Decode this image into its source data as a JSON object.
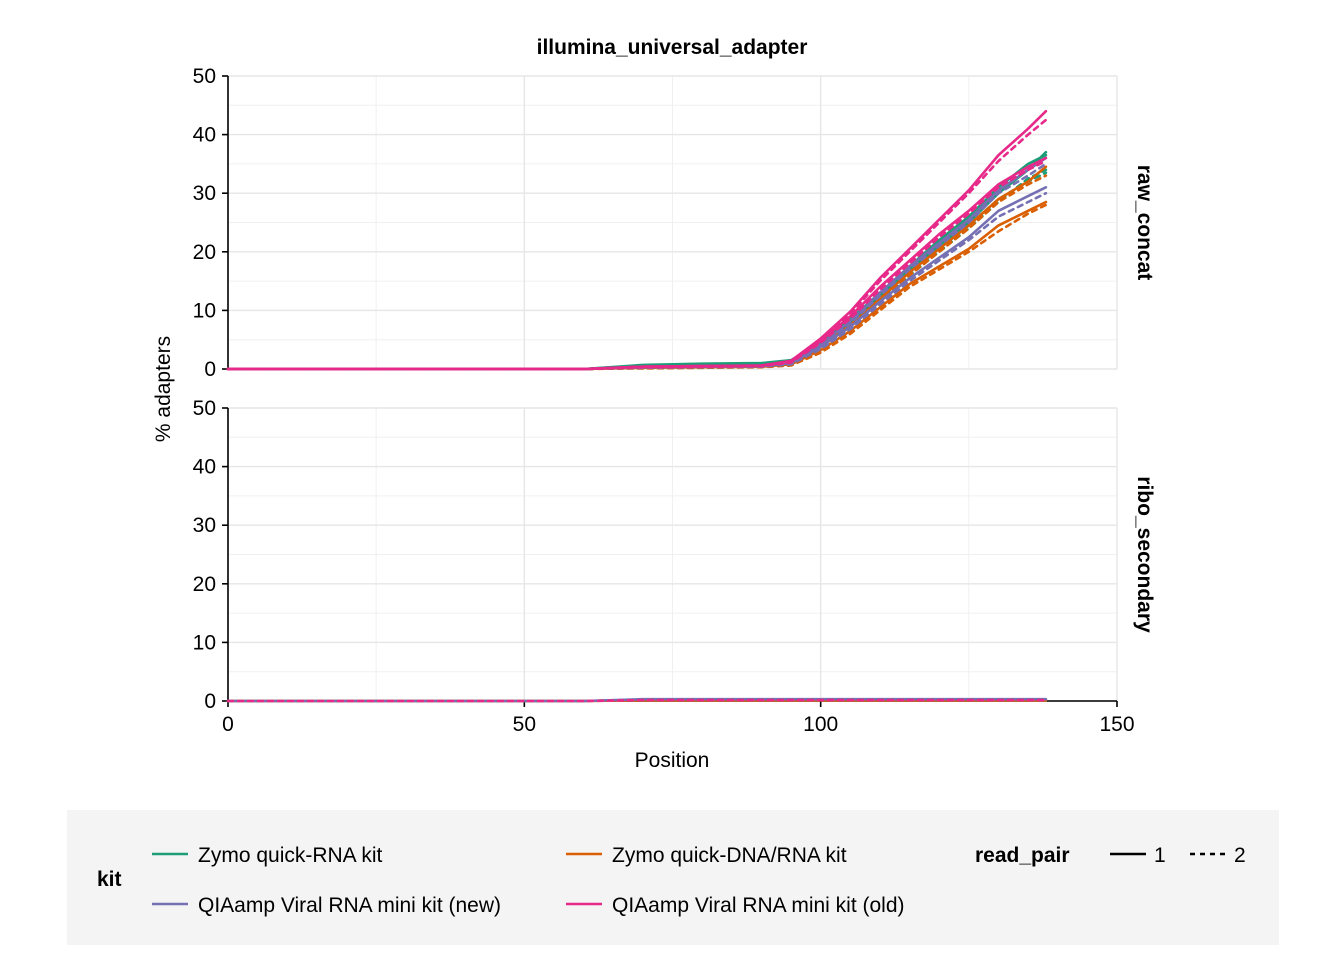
{
  "chart_data": {
    "type": "line",
    "title": "illumina_universal_adapter",
    "xlabel": "Position",
    "ylabel": "% adapters",
    "xlim": [
      0,
      150
    ],
    "ylim": [
      0,
      50
    ],
    "xticks": [
      0,
      50,
      100,
      150
    ],
    "yticks": [
      0,
      10,
      20,
      30,
      40,
      50
    ],
    "grid": true,
    "legend_position": "bottom",
    "facets": [
      "raw_concat",
      "ribo_secondary"
    ],
    "legend": {
      "kit_title": "kit",
      "read_pair_title": "read_pair",
      "kits": [
        {
          "label": "Zymo quick-RNA kit",
          "color": "#1b9e77"
        },
        {
          "label": "Zymo quick-DNA/RNA kit",
          "color": "#d95f02"
        },
        {
          "label": "QIAamp Viral RNA mini kit (new)",
          "color": "#7570b3"
        },
        {
          "label": "QIAamp Viral RNA mini kit (old)",
          "color": "#e7298a"
        }
      ],
      "read_pairs": [
        {
          "label": "1",
          "dash": "solid"
        },
        {
          "label": "2",
          "dash": "dashed"
        }
      ]
    },
    "x": [
      0,
      60,
      70,
      80,
      90,
      95,
      100,
      105,
      110,
      115,
      120,
      125,
      130,
      135,
      138
    ],
    "series": [
      {
        "facet": "raw_concat",
        "kit": "Zymo quick-RNA kit",
        "read_pair": "1",
        "values": [
          0,
          0,
          0.7,
          0.9,
          1.0,
          1.5,
          4.5,
          8.5,
          13,
          17.5,
          22,
          26,
          31,
          35,
          36.5
        ]
      },
      {
        "facet": "raw_concat",
        "kit": "Zymo quick-RNA kit",
        "read_pair": "2",
        "values": [
          0,
          0,
          0.4,
          0.5,
          0.6,
          1.2,
          4.0,
          7.8,
          12,
          16.5,
          20.5,
          24.5,
          29,
          32,
          33.5
        ]
      },
      {
        "facet": "raw_concat",
        "kit": "Zymo quick-RNA kit",
        "read_pair": "1",
        "values": [
          0,
          0,
          0.6,
          0.8,
          0.9,
          1.3,
          4.2,
          8.0,
          12.5,
          17,
          21,
          25,
          30,
          34,
          37
        ]
      },
      {
        "facet": "raw_concat",
        "kit": "Zymo quick-RNA kit",
        "read_pair": "2",
        "values": [
          0,
          0,
          0.3,
          0.4,
          0.5,
          1.0,
          3.8,
          7.5,
          11.5,
          16,
          20,
          24,
          28.5,
          32.5,
          34
        ]
      },
      {
        "facet": "raw_concat",
        "kit": "Zymo quick-DNA/RNA kit",
        "read_pair": "1",
        "values": [
          0,
          0,
          0.2,
          0.3,
          0.4,
          0.8,
          3.2,
          6.5,
          10.5,
          14.5,
          17.5,
          20.5,
          24.5,
          27,
          28.5
        ]
      },
      {
        "facet": "raw_concat",
        "kit": "Zymo quick-DNA/RNA kit",
        "read_pair": "2",
        "values": [
          0,
          0,
          0.1,
          0.2,
          0.3,
          0.6,
          2.8,
          6.0,
          10,
          14,
          17,
          20,
          23.5,
          26.5,
          28
        ]
      },
      {
        "facet": "raw_concat",
        "kit": "Zymo quick-DNA/RNA kit",
        "read_pair": "1",
        "values": [
          0,
          0,
          0.3,
          0.4,
          0.5,
          1.0,
          3.8,
          7.5,
          12,
          16.5,
          20.5,
          24.5,
          29,
          32,
          34.5
        ]
      },
      {
        "facet": "raw_concat",
        "kit": "Zymo quick-DNA/RNA kit",
        "read_pair": "2",
        "values": [
          0,
          0,
          0.2,
          0.3,
          0.4,
          0.9,
          3.5,
          7.2,
          11.5,
          16,
          20,
          24,
          28.5,
          31.5,
          33
        ]
      },
      {
        "facet": "raw_concat",
        "kit": "QIAamp Viral RNA mini kit (new)",
        "read_pair": "1",
        "values": [
          0,
          0,
          0.3,
          0.4,
          0.5,
          1.0,
          3.8,
          7.2,
          11.5,
          15.5,
          19,
          22.5,
          27,
          29.5,
          31
        ]
      },
      {
        "facet": "raw_concat",
        "kit": "QIAamp Viral RNA mini kit (new)",
        "read_pair": "2",
        "values": [
          0,
          0,
          0.2,
          0.3,
          0.4,
          0.8,
          3.4,
          6.8,
          11,
          15,
          18.5,
          22,
          26,
          28.5,
          30
        ]
      },
      {
        "facet": "raw_concat",
        "kit": "QIAamp Viral RNA mini kit (new)",
        "read_pair": "1",
        "values": [
          0,
          0,
          0.4,
          0.5,
          0.6,
          1.2,
          4.2,
          8.2,
          13,
          17.5,
          21.5,
          25.5,
          30.5,
          34,
          36
        ]
      },
      {
        "facet": "raw_concat",
        "kit": "QIAamp Viral RNA mini kit (new)",
        "read_pair": "2",
        "values": [
          0,
          0,
          0.3,
          0.4,
          0.5,
          1.0,
          4.0,
          7.8,
          12.5,
          17,
          21,
          25,
          30,
          33,
          35
        ]
      },
      {
        "facet": "raw_concat",
        "kit": "QIAamp Viral RNA mini kit (old)",
        "read_pair": "1",
        "values": [
          0,
          0,
          0.4,
          0.5,
          0.6,
          1.4,
          5.2,
          9.8,
          15.5,
          20.5,
          25.5,
          30.5,
          36.5,
          41,
          44
        ]
      },
      {
        "facet": "raw_concat",
        "kit": "QIAamp Viral RNA mini kit (old)",
        "read_pair": "2",
        "values": [
          0,
          0,
          0.3,
          0.4,
          0.5,
          1.2,
          5.0,
          9.4,
          15,
          20,
          25,
          30,
          35.5,
          40,
          42.5
        ]
      },
      {
        "facet": "raw_concat",
        "kit": "QIAamp Viral RNA mini kit (old)",
        "read_pair": "1",
        "values": [
          0,
          0,
          0.4,
          0.5,
          0.6,
          1.3,
          4.8,
          9.0,
          14,
          18.5,
          23,
          27,
          31.5,
          34.5,
          36
        ]
      },
      {
        "facet": "raw_concat",
        "kit": "QIAamp Viral RNA mini kit (old)",
        "read_pair": "2",
        "values": [
          0,
          0,
          0.3,
          0.4,
          0.5,
          1.1,
          4.5,
          8.6,
          13.5,
          18,
          22.5,
          26.5,
          31,
          34,
          35.5
        ]
      },
      {
        "facet": "ribo_secondary",
        "kit": "Zymo quick-RNA kit",
        "read_pair": "1",
        "values": [
          0,
          0,
          0.2,
          0.2,
          0.2,
          0.2,
          0.2,
          0.2,
          0.2,
          0.2,
          0.2,
          0.2,
          0.2,
          0.2,
          0.2
        ]
      },
      {
        "facet": "ribo_secondary",
        "kit": "Zymo quick-DNA/RNA kit",
        "read_pair": "1",
        "values": [
          0,
          0,
          0.1,
          0.1,
          0.1,
          0.1,
          0.1,
          0.1,
          0.1,
          0.1,
          0.1,
          0.1,
          0.1,
          0.1,
          0.1
        ]
      },
      {
        "facet": "ribo_secondary",
        "kit": "QIAamp Viral RNA mini kit (new)",
        "read_pair": "1",
        "values": [
          0,
          0,
          0.3,
          0.3,
          0.3,
          0.3,
          0.3,
          0.3,
          0.3,
          0.3,
          0.3,
          0.3,
          0.3,
          0.3,
          0.3
        ]
      },
      {
        "facet": "ribo_secondary",
        "kit": "QIAamp Viral RNA mini kit (old)",
        "read_pair": "2",
        "values": [
          0,
          0,
          0.15,
          0.15,
          0.15,
          0.15,
          0.15,
          0.15,
          0.15,
          0.15,
          0.15,
          0.15,
          0.15,
          0.15,
          0.15
        ]
      }
    ]
  }
}
